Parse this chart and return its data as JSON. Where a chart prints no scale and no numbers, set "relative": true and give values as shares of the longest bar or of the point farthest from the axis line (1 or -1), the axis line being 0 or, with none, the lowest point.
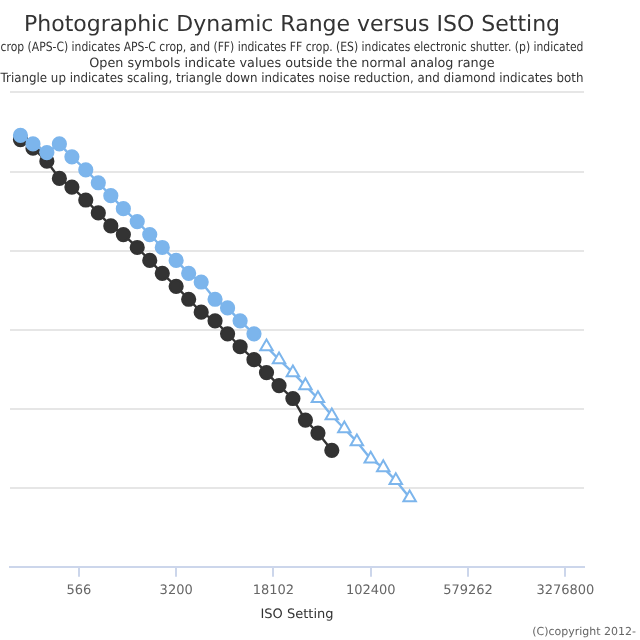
{
  "chart_data": {
    "type": "line",
    "title": "Photographic Dynamic Range versus ISO Setting",
    "subtitle": "crop (APS-C) indicates APS-C crop, and (FF) indicates FF crop. (ES) indicates electronic shutter. (p) indicated\nOpen symbols indicate values outside the normal analog range\nTriangle up indicates scaling, triangle down indicates noise reduction, and diamond indicates both",
    "xlabel": "ISO Setting",
    "log": "x",
    "relative": true,
    "grid": "y",
    "legend": false,
    "xlim": [
      166,
      4570000
    ],
    "xticks": [
      566,
      3200,
      18102,
      102400,
      579262,
      3276800
    ],
    "annotations": [
      "(C)copyright 2012-"
    ],
    "series": [
      {
        "color": "#7cb5ec",
        "marker": "circle",
        "x": [
          200,
          250,
          320,
          400,
          500,
          640,
          800,
          1000,
          1250,
          1600,
          2000,
          2500,
          3200,
          4000,
          5000,
          6400,
          8000,
          10000,
          12800
        ],
        "values": [
          1,
          0.98,
          0.96,
          0.98,
          0.95,
          0.92,
          0.89,
          0.86,
          0.83,
          0.8,
          0.77,
          0.74,
          0.71,
          0.68,
          0.66,
          0.62,
          0.6,
          0.57,
          0.54
        ]
      },
      {
        "color": "#7cb5ec",
        "marker": "triangle",
        "x": [
          16000,
          20000,
          25600,
          32000,
          40000,
          51200,
          64000,
          80000,
          102400,
          128000,
          160000,
          204800
        ],
        "values": [
          0.51,
          0.48,
          0.45,
          0.42,
          0.39,
          0.35,
          0.32,
          0.29,
          0.25,
          0.23,
          0.2,
          0.16
        ]
      },
      {
        "color": "#333333",
        "marker": "circle",
        "x": [
          200,
          250,
          320,
          400,
          500,
          640,
          800,
          1000,
          1250,
          1600,
          2000,
          2500,
          3200,
          4000,
          5000,
          6400,
          8000,
          10000,
          12800,
          16000,
          20000,
          25600,
          32000,
          40000,
          51200
        ],
        "values": [
          0.99,
          0.97,
          0.94,
          0.9,
          0.88,
          0.85,
          0.82,
          0.79,
          0.77,
          0.74,
          0.71,
          0.68,
          0.65,
          0.62,
          0.59,
          0.57,
          0.54,
          0.51,
          0.48,
          0.45,
          0.42,
          0.39,
          0.34,
          0.31,
          0.27
        ]
      }
    ]
  }
}
